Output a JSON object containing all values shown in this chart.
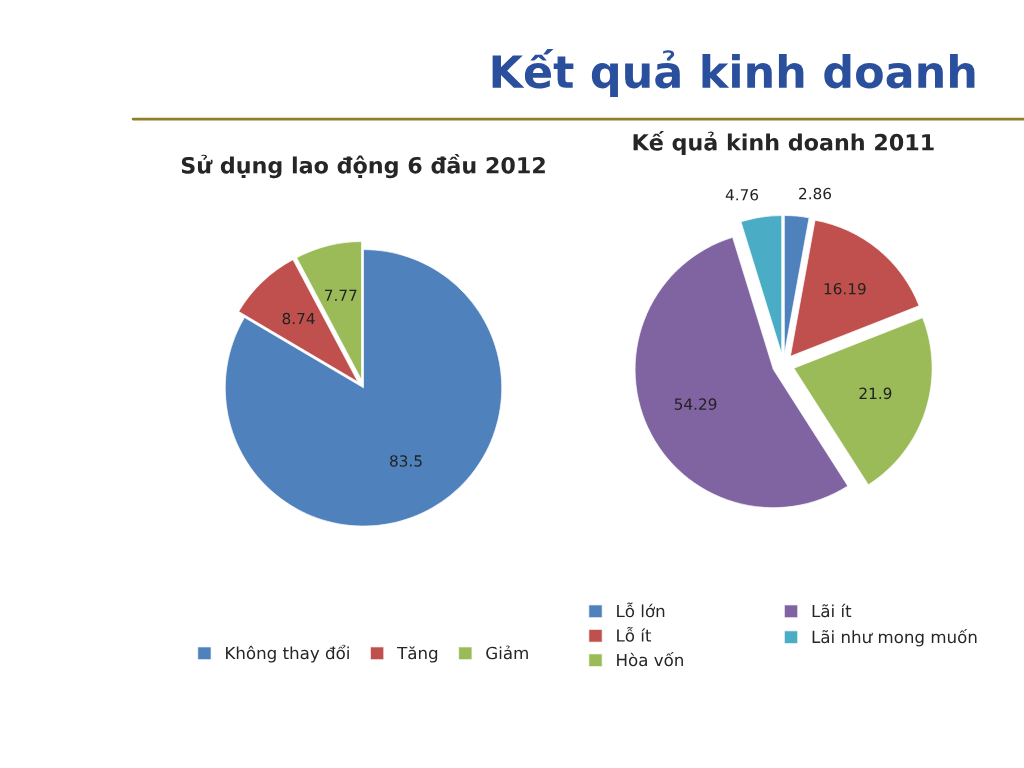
{
  "chart_data": [
    {
      "type": "pie",
      "title": "Sử dụng lao động 6 đầu 2012",
      "annotations": [
        "Kết quả kinh doanh"
      ],
      "categories": [
        "Không thay đổi",
        "Tăng",
        "Giảm"
      ],
      "values": [
        83.5,
        8.74,
        7.77
      ],
      "colors": [
        "#4f81bd",
        "#c0504d",
        "#9bbb59"
      ],
      "data_labels": true,
      "legend": "bottom"
    },
    {
      "type": "pie",
      "title": "Kế quả kinh doanh 2011",
      "categories": [
        "Lỗ lớn",
        "Lỗ ít",
        "Hòa vốn",
        "Lãi ít",
        "Lãi như mong muốn"
      ],
      "values": [
        2.86,
        16.19,
        21.9,
        54.29,
        4.76
      ],
      "colors": [
        "#4f81bd",
        "#c0504d",
        "#9bbb59",
        "#8064a2",
        "#4bacc6"
      ],
      "data_labels": true,
      "legend": "bottom"
    }
  ]
}
